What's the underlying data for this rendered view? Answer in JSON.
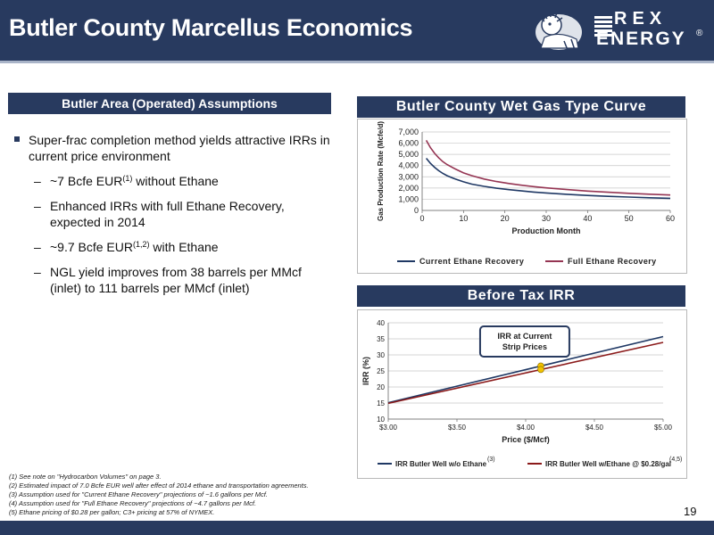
{
  "header": {
    "title": "Butler County Marcellus Economics",
    "logo_line1": "REX",
    "logo_line2": "ENERGY",
    "logo_mark": "®"
  },
  "left": {
    "section_title": "Butler Area (Operated) Assumptions",
    "bullet_main": "Super-frac completion method yields attractive IRRs in current price environment",
    "subs": [
      {
        "pre": "~7 Bcfe EUR",
        "sup": "(1)",
        "post": " without Ethane"
      },
      {
        "pre": "Enhanced IRRs with full Ethane Recovery, expected in 2014",
        "sup": "",
        "post": ""
      },
      {
        "pre": "~9.7 Bcfe EUR",
        "sup": "(1,2)",
        "post": " with Ethane"
      },
      {
        "pre": "NGL yield improves from 38 barrels per MMcf (inlet) to 111 barrels per MMcf (inlet)",
        "sup": "",
        "post": ""
      }
    ],
    "dash": "–"
  },
  "chart1_title": "Butler County Wet Gas Type Curve",
  "chart2_title": "Before Tax IRR",
  "footnotes": [
    "(1) See note on \"Hydrocarbon Volumes\" on page 3.",
    "(2) Estimated impact of 7.0 Bcfe EUR well after effect of 2014 ethane and transportation agreements.",
    "(3) Assumption used for \"Current Ethane Recovery\" projections of ~1.6 gallons per Mcf.",
    "(4) Assumption used for \"Full Ethane Recovery\" projections of ~4.7 gallons per Mcf.",
    "(5) Ethane pricing of $0.28 per gallon; C3+ pricing at 57% of NYMEX."
  ],
  "page_number": "19",
  "chart_data": [
    {
      "type": "line",
      "title": "Butler County Wet Gas Type Curve",
      "xlabel": "Production Month",
      "ylabel": "Gas Production Rate (Mcfe/d)",
      "xlim": [
        0,
        60
      ],
      "ylim": [
        0,
        7000
      ],
      "xticks": [
        "0",
        "10",
        "20",
        "30",
        "40",
        "50",
        "60"
      ],
      "yticks": [
        "0",
        "1,000",
        "2,000",
        "3,000",
        "4,000",
        "5,000",
        "6,000",
        "7,000"
      ],
      "grid": true,
      "legend_position": "bottom",
      "x": [
        1,
        2,
        3,
        4,
        5,
        6,
        8,
        10,
        12,
        15,
        18,
        21,
        24,
        27,
        30,
        35,
        40,
        45,
        50,
        55,
        60
      ],
      "series": [
        {
          "name": "Current Ethane Recovery",
          "color": "#1f3864",
          "values": [
            4650,
            4200,
            3850,
            3550,
            3300,
            3100,
            2800,
            2550,
            2350,
            2150,
            1980,
            1850,
            1740,
            1640,
            1560,
            1440,
            1340,
            1260,
            1190,
            1130,
            1080
          ]
        },
        {
          "name": "Full Ethane Recovery",
          "color": "#953553",
          "values": [
            6250,
            5600,
            5100,
            4700,
            4350,
            4100,
            3700,
            3350,
            3100,
            2800,
            2580,
            2400,
            2250,
            2120,
            2010,
            1860,
            1730,
            1620,
            1530,
            1450,
            1380
          ]
        }
      ]
    },
    {
      "type": "line",
      "title": "Before Tax IRR",
      "xlabel": "Price ($/Mcf)",
      "ylabel": "IRR (%)",
      "xlim": [
        3.0,
        5.0
      ],
      "ylim": [
        10,
        40
      ],
      "xticks": [
        "$3.00",
        "$3.50",
        "$4.00",
        "$4.50",
        "$5.00"
      ],
      "yticks": [
        "10",
        "15",
        "20",
        "25",
        "30",
        "35",
        "40"
      ],
      "grid": true,
      "legend_position": "bottom",
      "annotation": {
        "text_line1": "IRR at Current",
        "text_line2": "Strip Prices",
        "x": 4.11
      },
      "x": [
        3.0,
        5.0
      ],
      "series": [
        {
          "name": "IRR Butler Well w/o Ethane",
          "note": "(3)",
          "color": "#1f3864",
          "values": [
            15.1,
            35.7
          ]
        },
        {
          "name": "IRR Butler Well w/Ethane @ $0.28/gal",
          "note": "(4,5)",
          "color": "#8b1a1a",
          "values": [
            14.9,
            33.9
          ]
        }
      ],
      "marker_color": "#f2c200"
    }
  ]
}
